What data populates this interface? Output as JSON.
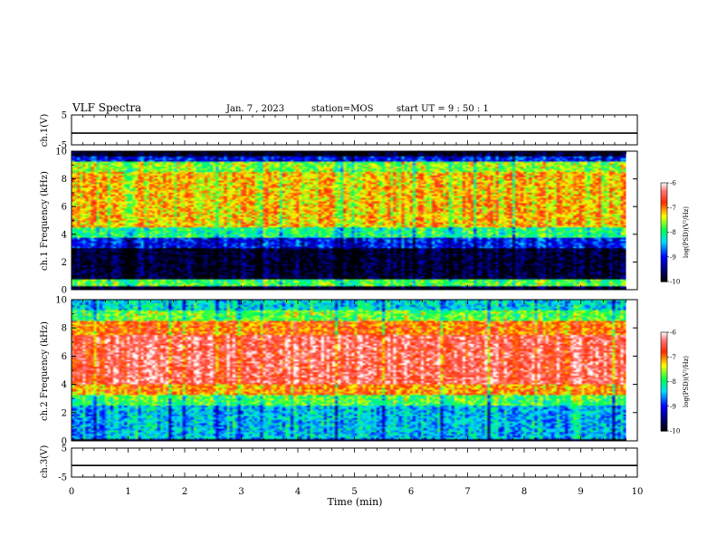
{
  "header": {
    "title": "VLF Spectra",
    "date": "Jan. 7 , 2023",
    "station": "station=MOS",
    "start": "start UT =  9 : 50 : 1"
  },
  "colorbar": {
    "label": "log(PSD)(V²/Hz)",
    "ticks": [
      -6,
      -7,
      -8,
      -9,
      -10
    ],
    "colors": [
      "#000000",
      "#0000ff",
      "#00ff00",
      "#ffff00",
      "#ff0000",
      "#ffffff"
    ]
  },
  "chart_data": [
    {
      "type": "line",
      "ylabel": "ch.1(V)",
      "ylim": [
        -5,
        5
      ],
      "yticks": [
        5,
        -5
      ],
      "x": [
        0,
        10
      ],
      "values": [
        -1.1,
        -1.1
      ]
    },
    {
      "type": "heatmap",
      "ylabel": "ch.1 Frequency (kHz)",
      "ylim": [
        0,
        10
      ],
      "yticks": [
        0,
        2,
        4,
        6,
        8,
        10
      ],
      "xlim": [
        0,
        10
      ],
      "data_xrange": [
        0,
        9.8
      ],
      "bands": [
        {
          "from": 0,
          "to": 0.3,
          "level": -9.8
        },
        {
          "from": 0.3,
          "to": 0.7,
          "level": -7.8
        },
        {
          "from": 0.7,
          "to": 3.0,
          "level": -9.8
        },
        {
          "from": 3.0,
          "to": 3.8,
          "level": -9.0
        },
        {
          "from": 3.8,
          "to": 4.5,
          "level": -8.0
        },
        {
          "from": 4.5,
          "to": 8.5,
          "level": -7.2
        },
        {
          "from": 8.5,
          "to": 9.2,
          "level": -7.6
        },
        {
          "from": 9.2,
          "to": 9.6,
          "level": -9.0
        },
        {
          "from": 9.6,
          "to": 10.0,
          "level": -9.9
        }
      ]
    },
    {
      "type": "heatmap",
      "ylabel": "ch.2 Frequency (kHz)",
      "ylim": [
        0,
        10
      ],
      "yticks": [
        0,
        2,
        4,
        6,
        8,
        10
      ],
      "xlim": [
        0,
        10
      ],
      "data_xrange": [
        0,
        9.8
      ],
      "bands": [
        {
          "from": 0,
          "to": 0.1,
          "level": -9.8
        },
        {
          "from": 0.1,
          "to": 2.5,
          "level": -8.4
        },
        {
          "from": 2.5,
          "to": 3.3,
          "level": -7.8
        },
        {
          "from": 3.3,
          "to": 4.0,
          "level": -7.0
        },
        {
          "from": 4.0,
          "to": 7.5,
          "level": -6.4
        },
        {
          "from": 7.5,
          "to": 8.5,
          "level": -6.9
        },
        {
          "from": 8.5,
          "to": 9.3,
          "level": -7.7
        },
        {
          "from": 9.3,
          "to": 10.0,
          "level": -8.3
        }
      ]
    },
    {
      "type": "line",
      "ylabel": "ch.3(V)",
      "ylim": [
        -5,
        5
      ],
      "yticks": [
        5,
        -5
      ],
      "x": [
        0,
        10
      ],
      "values": [
        -1.0,
        -1.0
      ]
    }
  ],
  "xaxis": {
    "label": "Time (min)",
    "ticks": [
      0,
      1,
      2,
      3,
      4,
      5,
      6,
      7,
      8,
      9,
      10
    ]
  }
}
